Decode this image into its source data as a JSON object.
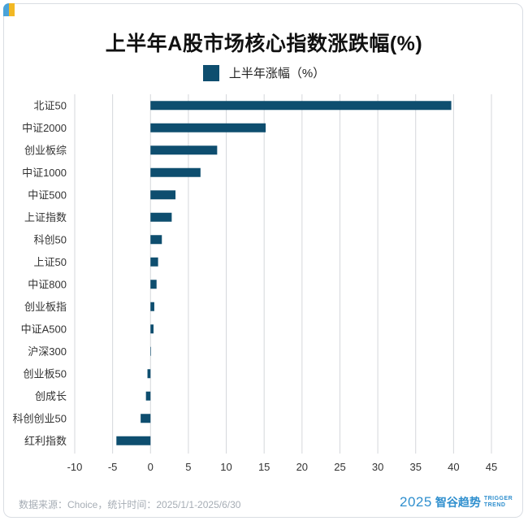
{
  "title": "上半年A股市场核心指数涨跌幅(%)",
  "legend": {
    "label": "上半年涨幅（%）",
    "color": "#0e4e6f"
  },
  "footer": {
    "source": "数据来源：Choice，统计时间：2025/1/1-2025/6/30",
    "brand_year": "2025",
    "brand_name": "智谷趋势",
    "brand_en_1": "TRIGGER",
    "brand_en_2": "TREND"
  },
  "chart_data": {
    "type": "bar",
    "orientation": "horizontal",
    "categories": [
      "北证50",
      "中证2000",
      "创业板综",
      "中证1000",
      "中证500",
      "上证指数",
      "科创50",
      "上证50",
      "中证800",
      "创业板指",
      "中证A500",
      "沪深300",
      "创业板50",
      "创成长",
      "科创创业50",
      "红利指数"
    ],
    "series": [
      {
        "name": "上半年涨幅（%）",
        "values": [
          39.7,
          15.2,
          8.8,
          6.6,
          3.3,
          2.8,
          1.5,
          1.0,
          0.8,
          0.5,
          0.4,
          0.03,
          -0.4,
          -0.6,
          -1.3,
          -4.5
        ]
      }
    ],
    "xlim": [
      -10,
      45
    ],
    "xticks": [
      -10,
      -5,
      0,
      5,
      10,
      15,
      20,
      25,
      30,
      35,
      40,
      45
    ],
    "xtick_labels": [
      "-10",
      "-5",
      "0",
      "5",
      "10",
      "15",
      "20",
      "25",
      "30",
      "35",
      "40",
      "45"
    ],
    "xlabel": "",
    "ylabel": "",
    "grid": "vertical",
    "legend_position": "top-center",
    "bar_color": "#0e4e6f",
    "grid_color": "#d4d7db",
    "label_color": "#333333"
  }
}
